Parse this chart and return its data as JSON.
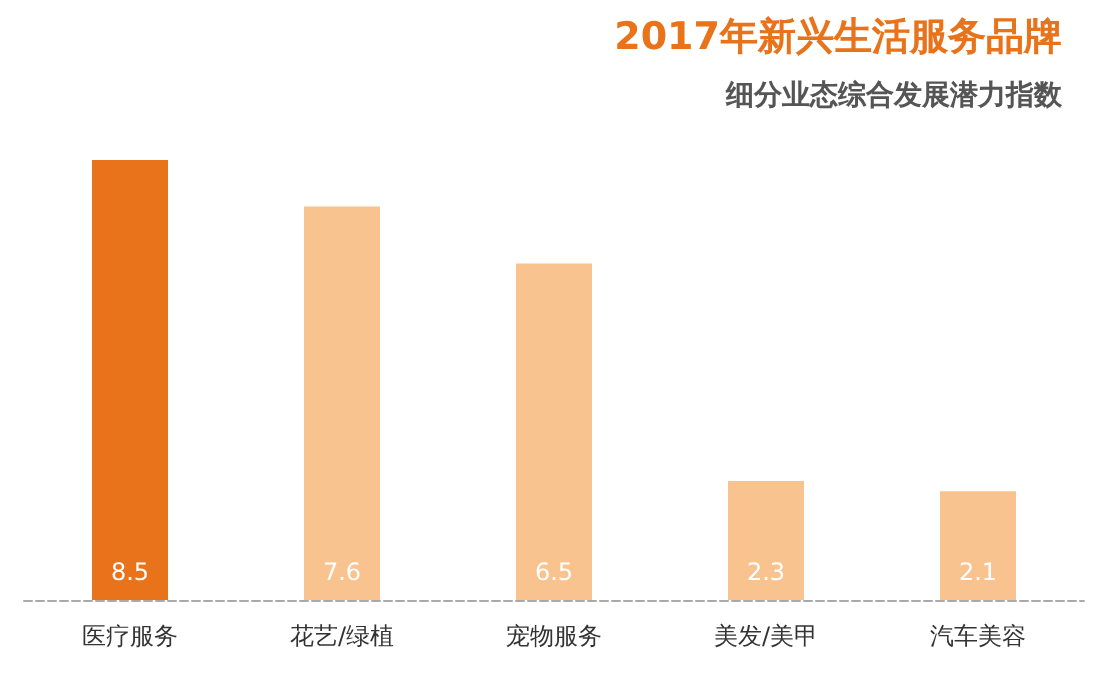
{
  "chart_data": {
    "type": "bar",
    "title": "2017年新兴生活服务品牌",
    "subtitle": "细分业态综合发展潜力指数",
    "categories": [
      "医疗服务",
      "花艺/绿植",
      "宠物服务",
      "美发/美甲",
      "汽车美容"
    ],
    "values": [
      8.5,
      7.6,
      6.5,
      2.3,
      2.1
    ],
    "colors": [
      "#e8731a",
      "#f9c390",
      "#f9c390",
      "#f9c390",
      "#f9c390"
    ],
    "data_labels": true
  }
}
